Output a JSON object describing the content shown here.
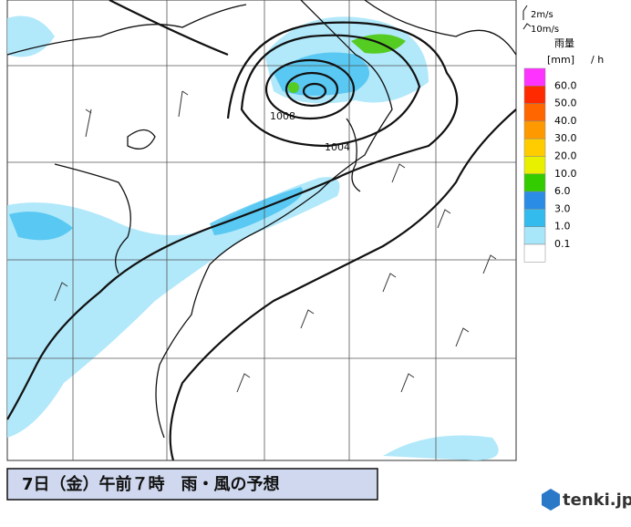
{
  "legend": {
    "wind_short": "2m/s",
    "wind_long": "10m/s",
    "rain_title": "雨量",
    "rain_unit": "[mm]",
    "rain_per": "/ h",
    "levels": [
      "60.0",
      "50.0",
      "40.0",
      "30.0",
      "20.0",
      "10.0",
      "6.0",
      "3.0",
      "1.0",
      "0.1"
    ],
    "colors": [
      "#ff33ff",
      "#ff2a00",
      "#ff6600",
      "#ff9900",
      "#ffcc00",
      "#e8f000",
      "#33cc00",
      "#2b8ce6",
      "#33bbee",
      "#a8e6fa",
      "#ffffff"
    ]
  },
  "isobars": [
    "1008",
    "1004"
  ],
  "caption": "7日（金）午前７時　雨・風の予想",
  "logo": "tenki.jp"
}
